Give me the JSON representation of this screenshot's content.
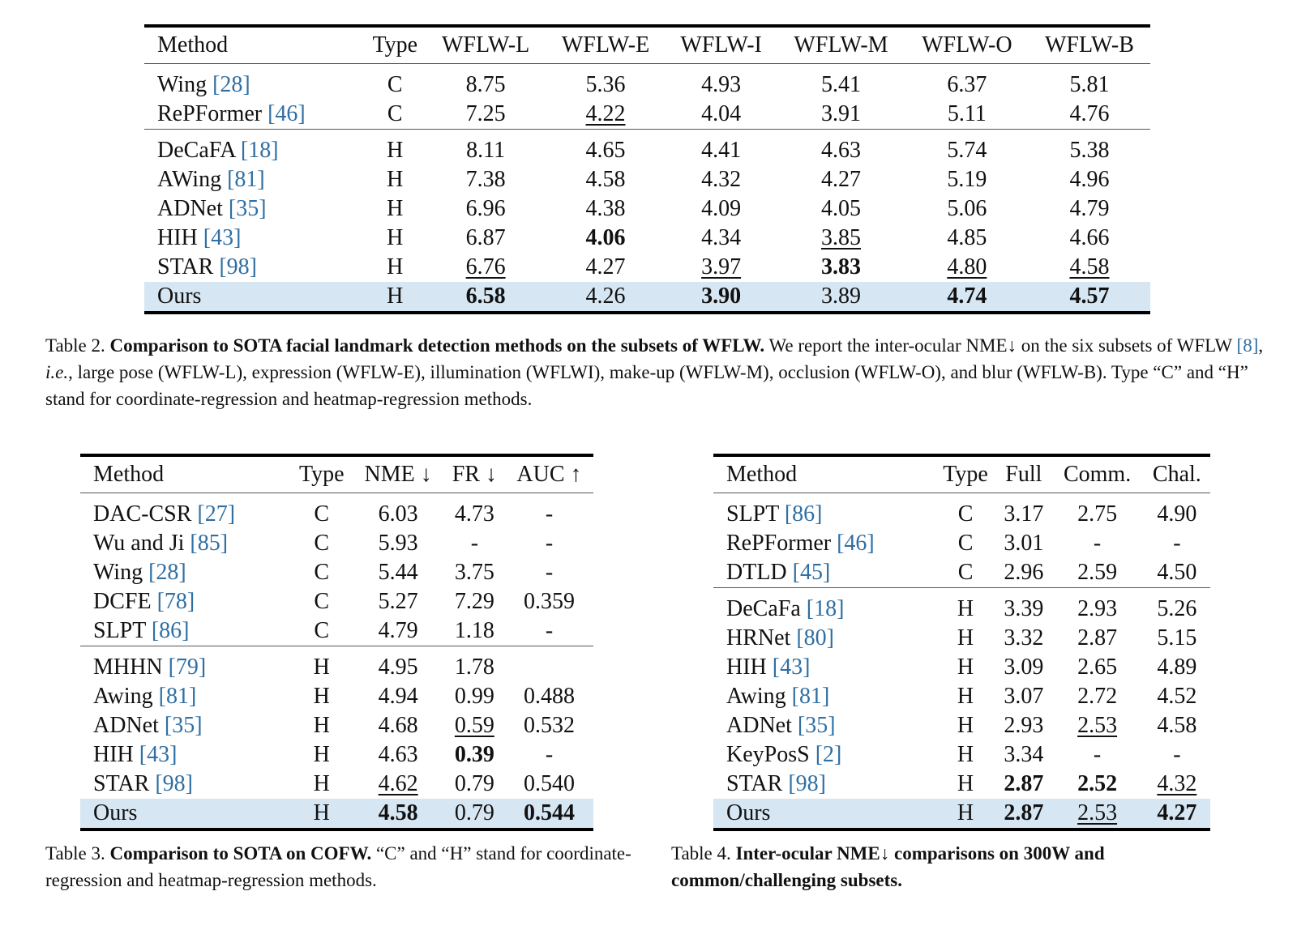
{
  "table2": {
    "headers": [
      "Method",
      "Type",
      "WFLW-L",
      "WFLW-E",
      "WFLW-I",
      "WFLW-M",
      "WFLW-O",
      "WFLW-B"
    ],
    "groups": [
      [
        {
          "method": "Wing ",
          "ref": "[28]",
          "type": "C",
          "vals": [
            "8.75",
            "5.36",
            "4.93",
            "5.41",
            "6.37",
            "5.81"
          ],
          "fmt": [
            "",
            "",
            "",
            "",
            "",
            ""
          ]
        },
        {
          "method": "RePFormer ",
          "ref": "[46]",
          "type": "C",
          "vals": [
            "7.25",
            "4.22",
            "4.04",
            "3.91",
            "5.11",
            "4.76"
          ],
          "fmt": [
            "",
            "u",
            "",
            "",
            "",
            ""
          ]
        }
      ],
      [
        {
          "method": "DeCaFA ",
          "ref": "[18]",
          "type": "H",
          "vals": [
            "8.11",
            "4.65",
            "4.41",
            "4.63",
            "5.74",
            "5.38"
          ],
          "fmt": [
            "",
            "",
            "",
            "",
            "",
            ""
          ]
        },
        {
          "method": "AWing ",
          "ref": "[81]",
          "type": "H",
          "vals": [
            "7.38",
            "4.58",
            "4.32",
            "4.27",
            "5.19",
            "4.96"
          ],
          "fmt": [
            "",
            "",
            "",
            "",
            "",
            ""
          ]
        },
        {
          "method": "ADNet ",
          "ref": "[35]",
          "type": "H",
          "vals": [
            "6.96",
            "4.38",
            "4.09",
            "4.05",
            "5.06",
            "4.79"
          ],
          "fmt": [
            "",
            "",
            "",
            "",
            "",
            ""
          ]
        },
        {
          "method": "HIH ",
          "ref": "[43]",
          "type": "H",
          "vals": [
            "6.87",
            "4.06",
            "4.34",
            "3.85",
            "4.85",
            "4.66"
          ],
          "fmt": [
            "",
            "b",
            "",
            "u",
            "",
            ""
          ]
        },
        {
          "method": "STAR ",
          "ref": "[98]",
          "type": "H",
          "vals": [
            "6.76",
            "4.27",
            "3.97",
            "3.83",
            "4.80",
            "4.58"
          ],
          "fmt": [
            "u",
            "",
            "u",
            "b",
            "u",
            "u"
          ]
        },
        {
          "method": "Ours",
          "ref": "",
          "type": "H",
          "vals": [
            "6.58",
            "4.26",
            "3.90",
            "3.89",
            "4.74",
            "4.57"
          ],
          "fmt": [
            "b",
            "",
            "b",
            "",
            "b",
            "b"
          ],
          "highlight": true
        }
      ]
    ],
    "caption_label": "Table 2. ",
    "caption_bold": "Comparison to SOTA facial landmark detection methods on the subsets of WFLW.",
    "caption_rest1": " We report the inter-ocular NME↓ on the six subsets of WFLW ",
    "caption_ref": "[8]",
    "caption_rest2": ", ",
    "caption_ie": "i.e.",
    "caption_rest3": ", large pose (WFLW-L), expression (WFLW-E), illumination (WFLWI), make-up (WFLW-M), occlusion (WFLW-O), and blur (WFLW-B). Type “C” and “H” stand for coordinate-regression and heatmap-regression methods."
  },
  "table3": {
    "headers": [
      "Method",
      "Type",
      "NME ↓",
      "FR ↓",
      "AUC ↑"
    ],
    "groups": [
      [
        {
          "method": "DAC-CSR ",
          "ref": "[27]",
          "type": "C",
          "vals": [
            "6.03",
            "4.73",
            "-"
          ],
          "fmt": [
            "",
            "",
            ""
          ]
        },
        {
          "method": "Wu and Ji ",
          "ref": "[85]",
          "type": "C",
          "vals": [
            "5.93",
            "-",
            "-"
          ],
          "fmt": [
            "",
            "",
            ""
          ]
        },
        {
          "method": "Wing ",
          "ref": "[28]",
          "type": "C",
          "vals": [
            "5.44",
            "3.75",
            "-"
          ],
          "fmt": [
            "",
            "",
            ""
          ]
        },
        {
          "method": "DCFE ",
          "ref": "[78]",
          "type": "C",
          "vals": [
            "5.27",
            "7.29",
            "0.359"
          ],
          "fmt": [
            "",
            "",
            ""
          ]
        },
        {
          "method": "SLPT ",
          "ref": "[86]",
          "type": "C",
          "vals": [
            "4.79",
            "1.18",
            "-"
          ],
          "fmt": [
            "",
            "",
            ""
          ]
        }
      ],
      [
        {
          "method": "MHHN ",
          "ref": "[79]",
          "type": "H",
          "vals": [
            "4.95",
            "1.78",
            ""
          ],
          "fmt": [
            "",
            "",
            ""
          ]
        },
        {
          "method": "Awing ",
          "ref": "[81]",
          "type": "H",
          "vals": [
            "4.94",
            "0.99",
            "0.488"
          ],
          "fmt": [
            "",
            "",
            ""
          ]
        },
        {
          "method": "ADNet ",
          "ref": "[35]",
          "type": "H",
          "vals": [
            "4.68",
            "0.59",
            "0.532"
          ],
          "fmt": [
            "",
            "u",
            ""
          ]
        },
        {
          "method": "HIH ",
          "ref": "[43]",
          "type": "H",
          "vals": [
            "4.63",
            "0.39",
            "-"
          ],
          "fmt": [
            "",
            "b",
            ""
          ]
        },
        {
          "method": "STAR ",
          "ref": "[98]",
          "type": "H",
          "vals": [
            "4.62",
            "0.79",
            "0.540"
          ],
          "fmt": [
            "u",
            "",
            ""
          ]
        },
        {
          "method": "Ours",
          "ref": "",
          "type": "H",
          "vals": [
            "4.58",
            "0.79",
            "0.544"
          ],
          "fmt": [
            "b",
            "",
            "b"
          ],
          "highlight": true
        }
      ]
    ],
    "caption_label": "Table 3. ",
    "caption_bold": "Comparison to SOTA on COFW.",
    "caption_rest": " “C” and “H” stand for coordinate-regression and heatmap-regression methods."
  },
  "table4": {
    "headers": [
      "Method",
      "Type",
      "Full",
      "Comm.",
      "Chal."
    ],
    "groups": [
      [
        {
          "method": "SLPT ",
          "ref": "[86]",
          "type": "C",
          "vals": [
            "3.17",
            "2.75",
            "4.90"
          ],
          "fmt": [
            "",
            "",
            ""
          ]
        },
        {
          "method": "RePFormer ",
          "ref": "[46]",
          "type": "C",
          "vals": [
            "3.01",
            "-",
            "-"
          ],
          "fmt": [
            "",
            "",
            ""
          ]
        },
        {
          "method": "DTLD ",
          "ref": "[45]",
          "type": "C",
          "vals": [
            "2.96",
            "2.59",
            "4.50"
          ],
          "fmt": [
            "",
            "",
            ""
          ]
        }
      ],
      [
        {
          "method": "DeCaFa ",
          "ref": "[18]",
          "type": "H",
          "vals": [
            "3.39",
            "2.93",
            "5.26"
          ],
          "fmt": [
            "",
            "",
            ""
          ]
        },
        {
          "method": "HRNet ",
          "ref": "[80]",
          "type": "H",
          "vals": [
            "3.32",
            "2.87",
            "5.15"
          ],
          "fmt": [
            "",
            "",
            ""
          ]
        },
        {
          "method": "HIH ",
          "ref": "[43]",
          "type": "H",
          "vals": [
            "3.09",
            "2.65",
            "4.89"
          ],
          "fmt": [
            "",
            "",
            ""
          ]
        },
        {
          "method": "Awing ",
          "ref": "[81]",
          "type": "H",
          "vals": [
            "3.07",
            "2.72",
            "4.52"
          ],
          "fmt": [
            "",
            "",
            ""
          ]
        },
        {
          "method": "ADNet ",
          "ref": "[35]",
          "type": "H",
          "vals": [
            "2.93",
            "2.53",
            "4.58"
          ],
          "fmt": [
            "",
            "u",
            ""
          ]
        },
        {
          "method": "KeyPosS ",
          "ref": "[2]",
          "type": "H",
          "vals": [
            "3.34",
            "-",
            "-"
          ],
          "fmt": [
            "",
            "",
            ""
          ]
        },
        {
          "method": "STAR ",
          "ref": "[98]",
          "type": "H",
          "vals": [
            "2.87",
            "2.52",
            "4.32"
          ],
          "fmt": [
            "b",
            "b",
            "u"
          ]
        },
        {
          "method": "Ours",
          "ref": "",
          "type": "H",
          "vals": [
            "2.87",
            "2.53",
            "4.27"
          ],
          "fmt": [
            "b",
            "u",
            "b"
          ],
          "highlight": true
        }
      ]
    ],
    "caption_label": "Table 4. ",
    "caption_bold": "Inter-ocular NME↓ comparisons on 300W and common/challenging subsets."
  }
}
